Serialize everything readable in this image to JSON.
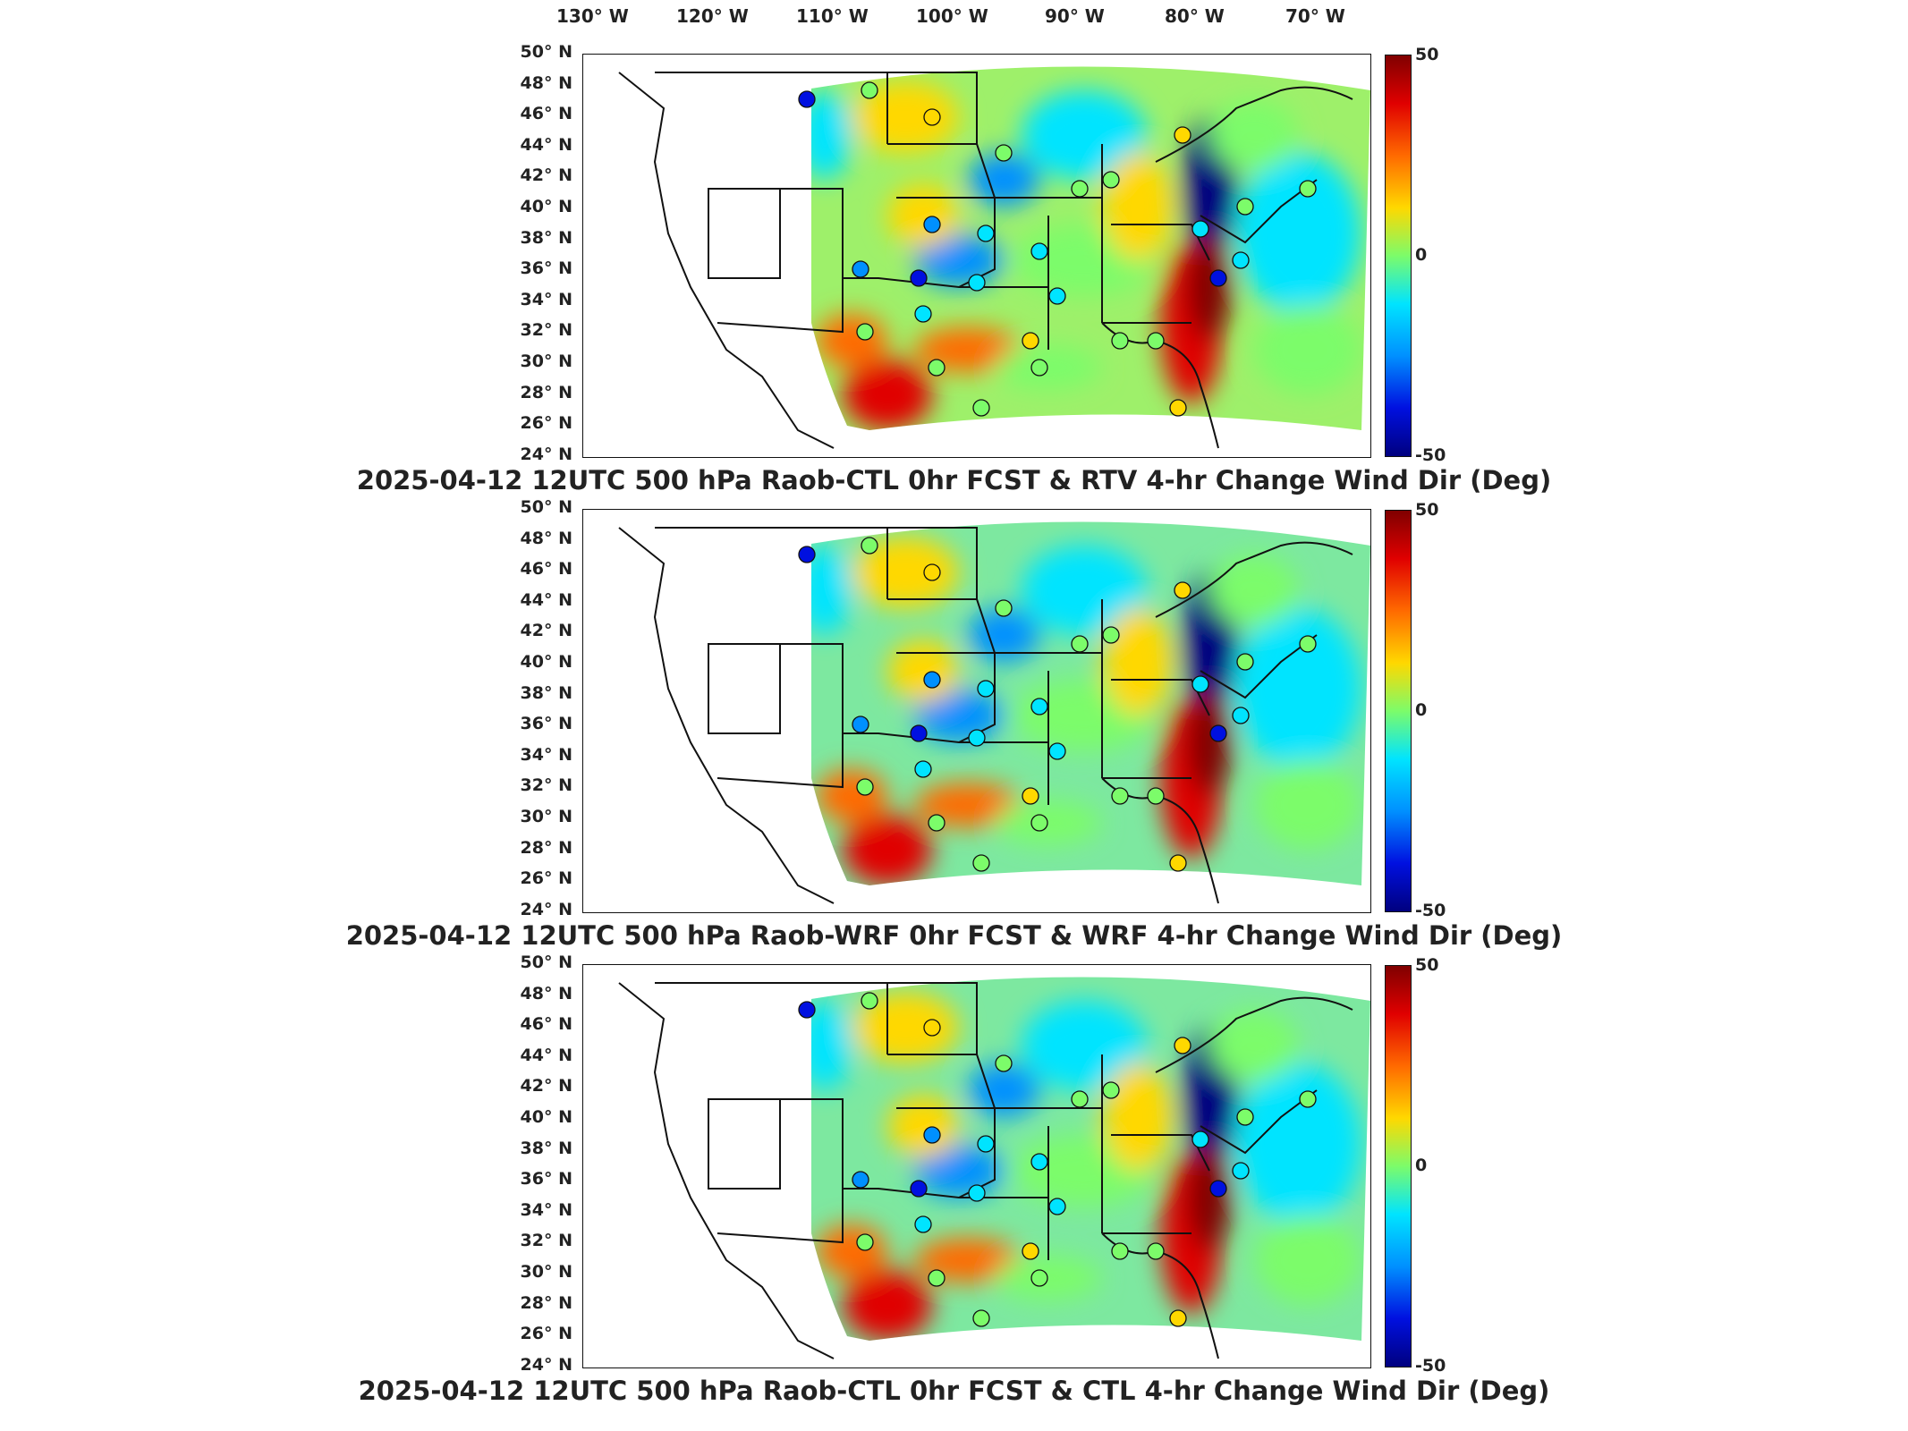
{
  "lon_labels": [
    "130° W",
    "120° W",
    "110° W",
    "100° W",
    "90° W",
    "80° W",
    "70° W"
  ],
  "lat_labels": [
    "50° N",
    "48° N",
    "46° N",
    "44° N",
    "42° N",
    "40° N",
    "38° N",
    "36° N",
    "34° N",
    "32° N",
    "30° N",
    "28° N",
    "26° N",
    "24° N"
  ],
  "colorbar": {
    "max": "50",
    "mid": "0",
    "min": "-50",
    "colors": [
      "#800000",
      "#e00000",
      "#ff6a00",
      "#ffd800",
      "#7cfc6a",
      "#00e4ff",
      "#0090ff",
      "#0010e0",
      "#00007f"
    ]
  },
  "panels": [
    {
      "title": "2025-04-12 12UTC 500 hPa Raob-CTL 0hr FCST & RTV 4-hr Change Wind Dir (Deg)"
    },
    {
      "title": "2025-04-12 12UTC 500 hPa Raob-WRF 0hr FCST & WRF 4-hr Change Wind Dir (Deg)"
    },
    {
      "title": "2025-04-12 12UTC 500 hPa Raob-CTL 0hr FCST & CTL 4-hr Change Wind Dir (Deg)"
    }
  ]
}
